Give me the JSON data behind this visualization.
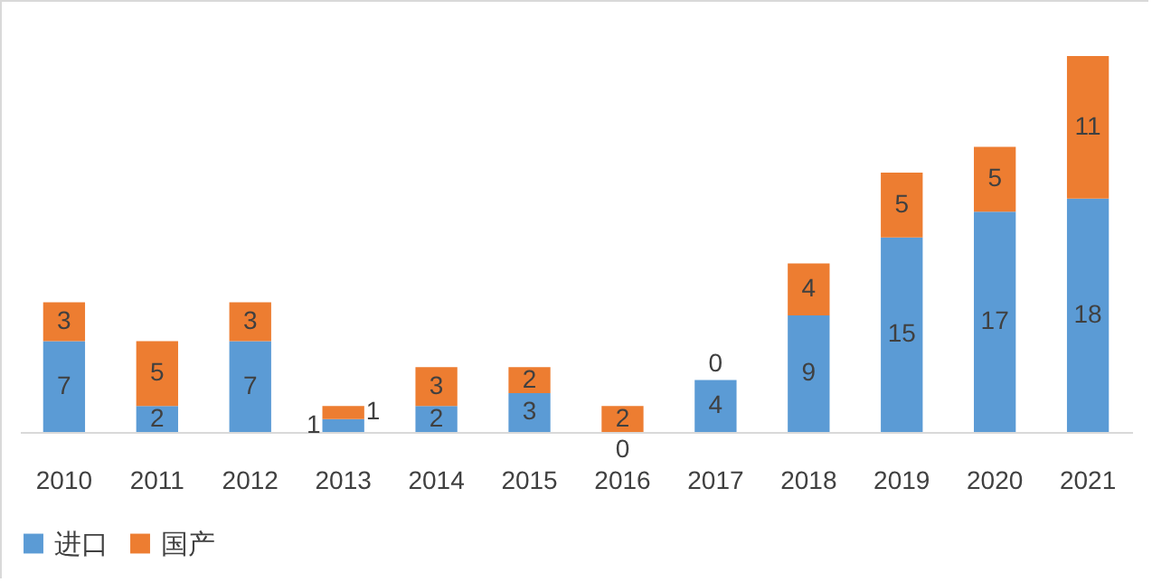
{
  "chart_data": {
    "type": "bar",
    "stacked": true,
    "data_labels": true,
    "legend": "bottom",
    "grid": false,
    "categories": [
      "2010",
      "2011",
      "2012",
      "2013",
      "2014",
      "2015",
      "2016",
      "2017",
      "2018",
      "2019",
      "2020",
      "2021"
    ],
    "series": [
      {
        "name": "进口",
        "color": "#5b9bd5",
        "values": [
          7,
          2,
          7,
          1,
          2,
          3,
          0,
          4,
          9,
          15,
          17,
          18
        ]
      },
      {
        "name": "国产",
        "color": "#ed7d31",
        "values": [
          3,
          5,
          3,
          1,
          3,
          2,
          2,
          0,
          4,
          5,
          5,
          11
        ]
      }
    ]
  }
}
